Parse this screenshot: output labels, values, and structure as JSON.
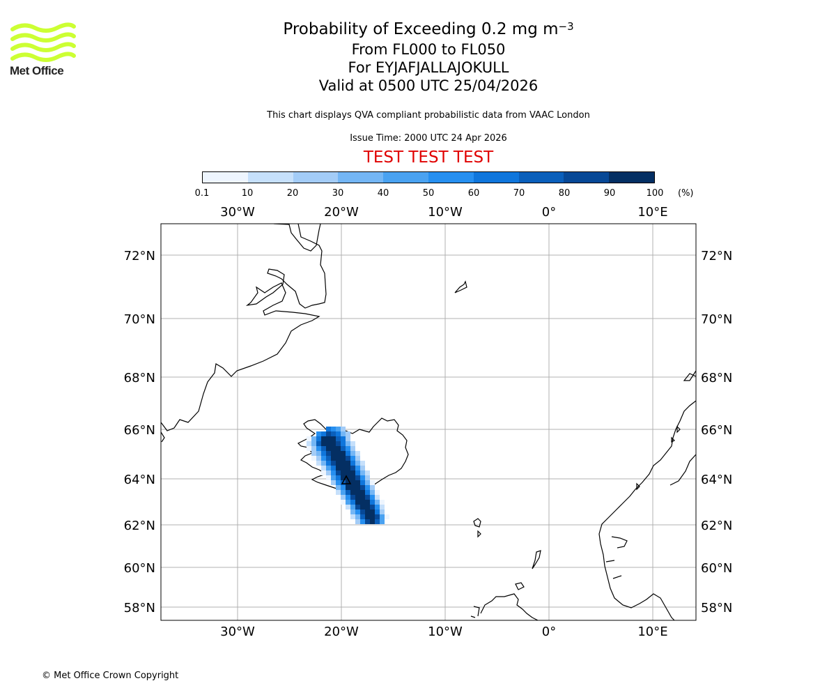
{
  "header": {
    "title": "Probability of Exceeding 0.2 mg m",
    "title_superscript": "−3",
    "line2": "From FL000 to FL050",
    "line3": "For EYJAFJALLAJOKULL",
    "line4": "Valid at 0500 UTC 25/04/2026",
    "note": "This chart displays QVA compliant probabilistic data from VAAC London",
    "issue_time": "Issue Time: 2000 UTC 24 Apr 2026",
    "test_banner": "TEST TEST TEST"
  },
  "logo": {
    "text": "Met Office",
    "color": "#ccff33",
    "icon": "met-office-waves-icon"
  },
  "colorbar": {
    "tick_labels": [
      "0.1",
      "10",
      "20",
      "30",
      "40",
      "50",
      "60",
      "70",
      "80",
      "90",
      "100"
    ],
    "unit": "(%)",
    "colors": [
      "#eef5fe",
      "#c6e0fb",
      "#a3ccf7",
      "#74b6f5",
      "#4aa2f1",
      "#268ff0",
      "#0f76dc",
      "#0a5fbb",
      "#074896",
      "#042f63"
    ]
  },
  "map": {
    "lon_labels": [
      "30°W",
      "20°W",
      "10°W",
      "0°",
      "10°E"
    ],
    "lat_labels": [
      "72°N",
      "70°N",
      "68°N",
      "66°N",
      "64°N",
      "62°N",
      "60°N",
      "58°N"
    ],
    "gridline_color": "#b0b0b0",
    "volcano_marker": "triangle-icon"
  },
  "footer": {
    "copyright": "© Met Office Crown Copyright"
  }
}
